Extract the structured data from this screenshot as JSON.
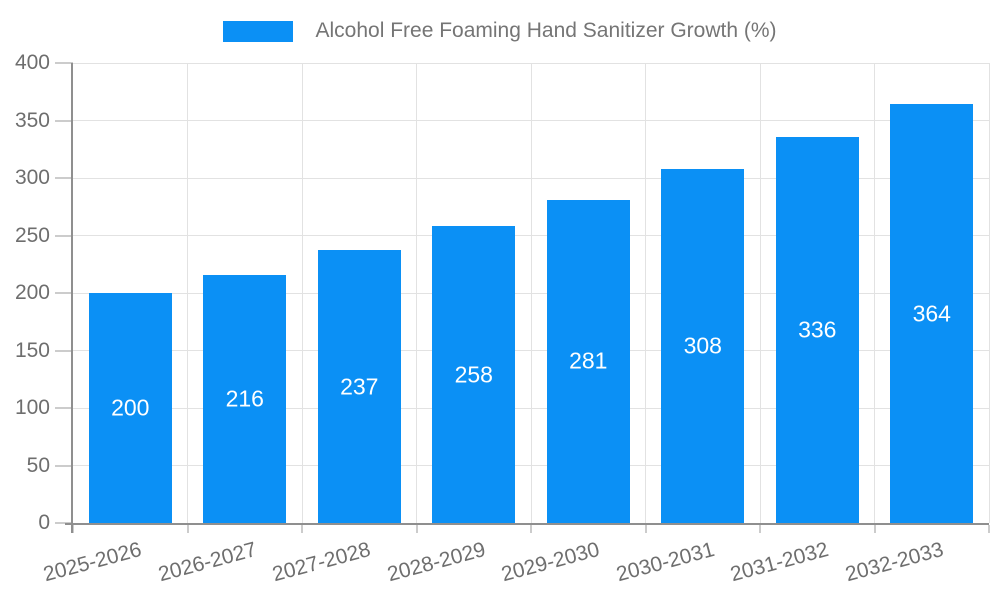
{
  "legend": {
    "label": "Alcohol Free Foaming Hand Sanitizer Growth (%)"
  },
  "colors": {
    "bar": "#0b90f5",
    "grid": "#e2e2e2",
    "tick": "#cccccc",
    "axis": "#8f8f8f",
    "text": "#6e6e6e",
    "title": "#757575",
    "bar_label": "#ffffff"
  },
  "chart_data": {
    "type": "bar",
    "title": "Alcohol Free Foaming Hand Sanitizer Growth (%)",
    "categories": [
      "2025-2026",
      "2026-2027",
      "2027-2028",
      "2028-2029",
      "2029-2030",
      "2030-2031",
      "2031-2032",
      "2032-2033"
    ],
    "values": [
      200,
      216,
      237,
      258,
      281,
      308,
      336,
      364
    ],
    "xlabel": "",
    "ylabel": "",
    "ylim": [
      0,
      400
    ],
    "ytick_step": 50,
    "yticks": [
      0,
      50,
      100,
      150,
      200,
      250,
      300,
      350,
      400
    ],
    "grid": true,
    "legend_position": "top",
    "value_labels": "inside-center",
    "x_label_rotation_deg": -15
  }
}
